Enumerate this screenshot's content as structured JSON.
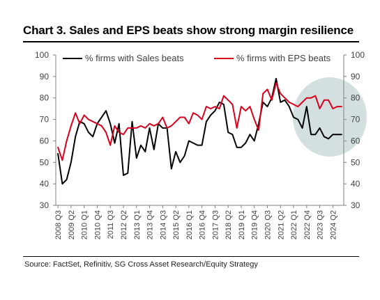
{
  "title": "Chart 3. Sales and EPS beats show strong margin resilience",
  "source": "Source: FactSet, Refinitiv, SG Cross Asset Research/Equity Strategy",
  "chart_data": {
    "type": "line",
    "title": "Chart 3. Sales and EPS beats show strong margin resilience",
    "ylim": [
      30,
      100
    ],
    "yticks": [
      30,
      40,
      50,
      60,
      70,
      80,
      90,
      100
    ],
    "y2lim": [
      30,
      100
    ],
    "y2ticks": [
      30,
      40,
      50,
      60,
      70,
      80,
      90,
      100
    ],
    "grid": false,
    "legend_position": "top",
    "x_tick_labels": [
      "2008 Q3",
      "2009 Q2",
      "2010 Q1",
      "2010 Q4",
      "2011 Q3",
      "2012 Q2",
      "2013 Q1",
      "2013 Q4",
      "2014 Q3",
      "2015 Q2",
      "2016 Q1",
      "2016 Q4",
      "2017 Q3",
      "2018 Q2",
      "2019 Q1",
      "2019 Q4",
      "2020 Q3",
      "2021 Q2",
      "2022 Q1",
      "2022 Q4",
      "2023 Q3",
      "2024 Q2"
    ],
    "x_tick_step": 3,
    "n_points": 66,
    "series": [
      {
        "name": "% firms with Sales beats",
        "color": "#000000",
        "values": [
          54,
          40,
          42,
          50,
          62,
          69,
          68,
          64,
          62,
          68,
          71,
          74,
          68,
          59,
          68,
          44,
          45,
          69,
          52,
          58,
          55,
          66,
          56,
          68,
          66,
          66,
          47,
          55,
          50,
          53,
          60,
          59,
          58,
          58,
          69,
          72,
          74,
          78,
          77,
          64,
          63,
          57,
          57,
          59,
          63,
          60,
          68,
          78,
          76,
          80,
          89,
          78,
          79,
          76,
          71,
          70,
          66,
          76,
          63,
          63,
          66,
          62,
          61,
          63,
          63,
          63
        ]
      },
      {
        "name": "% firms with EPS beats",
        "color": "#d9001b",
        "values": [
          57,
          51,
          60,
          67,
          73,
          68,
          72,
          70,
          69,
          68,
          67,
          64,
          58,
          67,
          64,
          63,
          66,
          66,
          66,
          67,
          66,
          68,
          67,
          68,
          71,
          66,
          67,
          69,
          71,
          71,
          68,
          73,
          72,
          70,
          76,
          75,
          76,
          75,
          81,
          79,
          77,
          66,
          76,
          74,
          76,
          70,
          65,
          82,
          84,
          79,
          87,
          82,
          80,
          78,
          77,
          76,
          78,
          80,
          80,
          81,
          75,
          79,
          79,
          75,
          76,
          76
        ]
      }
    ],
    "annotations": [
      {
        "type": "highlight-ellipse",
        "note": "recent quarters"
      }
    ]
  }
}
